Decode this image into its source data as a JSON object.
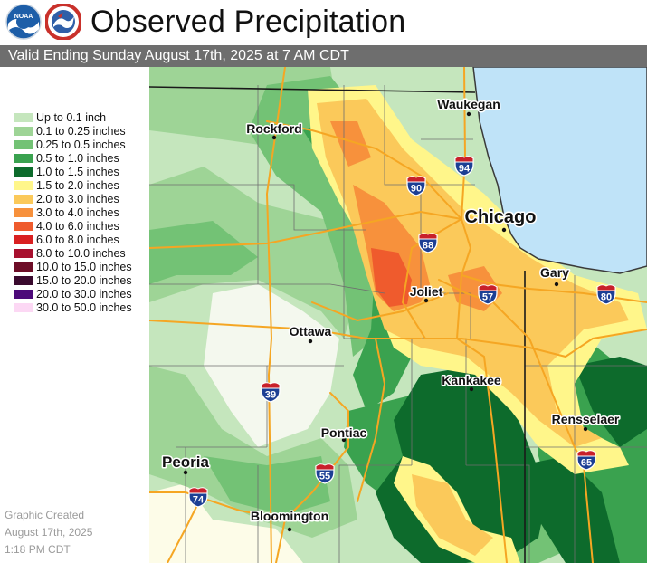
{
  "header": {
    "title": "Observed Precipitation",
    "subtitle": "Valid Ending Sunday August 17th, 2025 at 7 AM CDT",
    "logos": [
      {
        "name": "noaa-logo",
        "text": "NOAA"
      },
      {
        "name": "nws-logo",
        "text": "NATIONAL WEATHER SERVICE"
      }
    ]
  },
  "legend": {
    "items": [
      {
        "label": "Up to 0.1 inch",
        "color": "#c5e6bd"
      },
      {
        "label": "0.1 to 0.25 inches",
        "color": "#9ed496"
      },
      {
        "label": "0.25 to 0.5 inches",
        "color": "#73c275"
      },
      {
        "label": "0.5 to 1.0 inches",
        "color": "#3aa24f"
      },
      {
        "label": "1.0 to 1.5 inches",
        "color": "#0d6b2c"
      },
      {
        "label": "1.5 to 2.0 inches",
        "color": "#fff68a"
      },
      {
        "label": "2.0 to 3.0 inches",
        "color": "#fbc95a"
      },
      {
        "label": "3.0 to 4.0 inches",
        "color": "#f7913c"
      },
      {
        "label": "4.0 to 6.0 inches",
        "color": "#ef5b2d"
      },
      {
        "label": "6.0 to 8.0 inches",
        "color": "#d92021"
      },
      {
        "label": "8.0 to 10.0 inches",
        "color": "#a8102e"
      },
      {
        "label": "10.0 to 15.0 inches",
        "color": "#6d0d27"
      },
      {
        "label": "15.0 to 20.0 inches",
        "color": "#3a0a2e"
      },
      {
        "label": "20.0 to 30.0 inches",
        "color": "#4d0a7a"
      },
      {
        "label": "30.0 to 50.0 inches",
        "color": "#fcd8f4"
      }
    ]
  },
  "credit": {
    "line1": "Graphic Created",
    "line2": "August 17th, 2025",
    "line3": "1:18 PM CDT"
  },
  "map": {
    "cities": [
      {
        "name": "Waukegan"
      },
      {
        "name": "Rockford"
      },
      {
        "name": "Chicago"
      },
      {
        "name": "Gary"
      },
      {
        "name": "Joliet"
      },
      {
        "name": "Ottawa"
      },
      {
        "name": "Kankakee"
      },
      {
        "name": "Rensselaer"
      },
      {
        "name": "Pontiac"
      },
      {
        "name": "Peoria"
      },
      {
        "name": "Bloomington"
      }
    ],
    "interstates": [
      "94",
      "90",
      "88",
      "57",
      "80",
      "39",
      "55",
      "74",
      "65"
    ]
  }
}
